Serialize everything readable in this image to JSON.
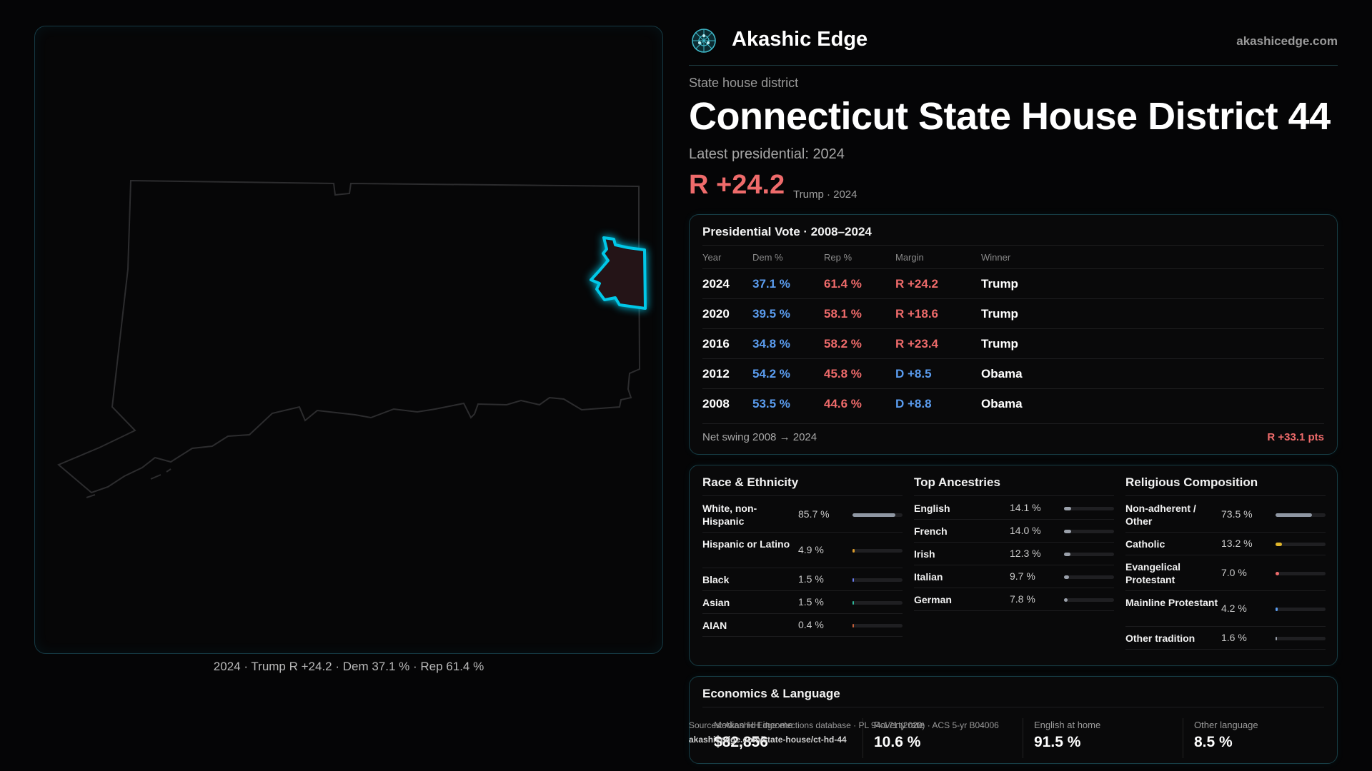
{
  "map": {
    "caption": "2024 · Trump R +24.2 · Dem 37.1 % · Rep 61.4 %",
    "district_color": "#00c8e8",
    "outline_color": "#2c2c2e"
  },
  "brand": {
    "name": "Akashic Edge",
    "url": "akashicedge.com",
    "logo_icon": "network-globe-icon"
  },
  "header": {
    "kicker": "State house district",
    "title": "Connecticut State House District 44",
    "latest": "Latest presidential: 2024",
    "margin": "R +24.2",
    "margin_sub": "Trump · 2024"
  },
  "presidential": {
    "title": "Presidential Vote · 2008–2024",
    "columns": [
      "Year",
      "Dem %",
      "Rep %",
      "Margin",
      "Winner"
    ],
    "rows": [
      {
        "year": "2024",
        "dem": "37.1 %",
        "rep": "61.4 %",
        "margin": "R +24.2",
        "party": "R",
        "winner": "Trump"
      },
      {
        "year": "2020",
        "dem": "39.5 %",
        "rep": "58.1 %",
        "margin": "R +18.6",
        "party": "R",
        "winner": "Trump"
      },
      {
        "year": "2016",
        "dem": "34.8 %",
        "rep": "58.2 %",
        "margin": "R +23.4",
        "party": "R",
        "winner": "Trump"
      },
      {
        "year": "2012",
        "dem": "54.2 %",
        "rep": "45.8 %",
        "margin": "D +8.5",
        "party": "D",
        "winner": "Obama"
      },
      {
        "year": "2008",
        "dem": "53.5 %",
        "rep": "44.6 %",
        "margin": "D +8.8",
        "party": "D",
        "winner": "Obama"
      }
    ],
    "swing_label": "Net swing 2008 → 2024",
    "swing_value": "R +33.1 pts"
  },
  "demographics": {
    "race": {
      "title": "Race & Ethnicity",
      "items": [
        {
          "label": "White, non-Hispanic",
          "value": "85.7 %",
          "pct": 85.7,
          "color": "#8f97a3"
        },
        {
          "label": "Hispanic or Latino",
          "value": "4.9 %",
          "pct": 4.9,
          "color": "#d99a2b"
        },
        {
          "label": "Black",
          "value": "1.5 %",
          "pct": 1.5,
          "color": "#6a7cf0"
        },
        {
          "label": "Asian",
          "value": "1.5 %",
          "pct": 1.5,
          "color": "#2fb89a"
        },
        {
          "label": "AIAN",
          "value": "0.4 %",
          "pct": 0.4,
          "color": "#c7603a"
        }
      ]
    },
    "ancestry": {
      "title": "Top Ancestries",
      "items": [
        {
          "label": "English",
          "value": "14.1 %",
          "pct": 14.1,
          "color": "#9aa0aa"
        },
        {
          "label": "French",
          "value": "14.0 %",
          "pct": 14.0,
          "color": "#9aa0aa"
        },
        {
          "label": "Irish",
          "value": "12.3 %",
          "pct": 12.3,
          "color": "#9aa0aa"
        },
        {
          "label": "Italian",
          "value": "9.7 %",
          "pct": 9.7,
          "color": "#9aa0aa"
        },
        {
          "label": "German",
          "value": "7.8 %",
          "pct": 7.8,
          "color": "#9aa0aa"
        }
      ]
    },
    "religion": {
      "title": "Religious Composition",
      "items": [
        {
          "label": "Non-adherent / Other",
          "value": "73.5 %",
          "pct": 73.5,
          "color": "#8f97a3"
        },
        {
          "label": "Catholic",
          "value": "13.2 %",
          "pct": 13.2,
          "color": "#e0b52a"
        },
        {
          "label": "Evangelical Protestant",
          "value": "7.0 %",
          "pct": 7.0,
          "color": "#ef6b6b"
        },
        {
          "label": "Mainline Protestant",
          "value": "4.2 %",
          "pct": 4.2,
          "color": "#5b9df0"
        },
        {
          "label": "Other tradition",
          "value": "1.6 %",
          "pct": 1.6,
          "color": "#9aa0aa"
        }
      ]
    }
  },
  "economics": {
    "title": "Economics & Language",
    "stats": [
      {
        "label": "Median HH income",
        "value": "$82,856"
      },
      {
        "label": "Poverty rate",
        "value": "10.6 %"
      },
      {
        "label": "English at home",
        "value": "91.5 %"
      },
      {
        "label": "Other language",
        "value": "8.5 %"
      }
    ]
  },
  "source": {
    "text": "Sources: Akashic Edge elections database · PL 94-171 (2020) · ACS 5-yr B04006",
    "url": "akashicedge.com/state-house/ct-hd-44"
  }
}
